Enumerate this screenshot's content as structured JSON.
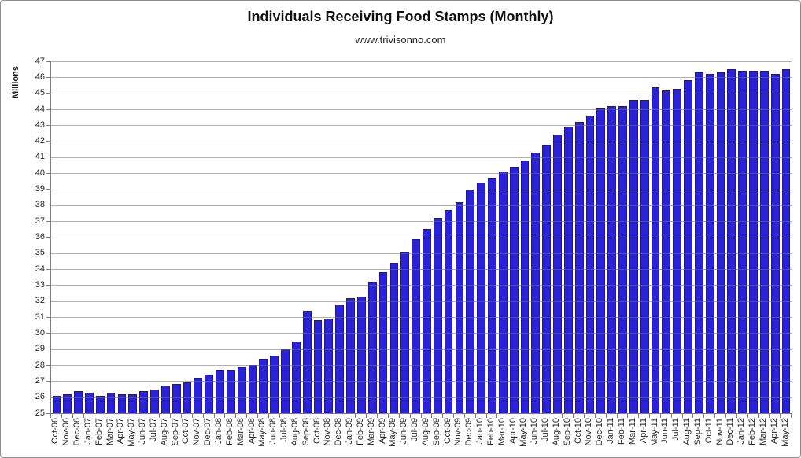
{
  "title": "Individuals Receiving Food Stamps (Monthly)",
  "subtitle": "www.trivisonno.com",
  "colors": {
    "bar_fill": "#2b22d5",
    "bar_border": "#1a149e",
    "gridline": "#ababab",
    "axis": "#7d7d7d",
    "text": "#262626",
    "title_text": "#111111",
    "background": "#ffffff"
  },
  "chart_data": {
    "type": "bar",
    "title": "Individuals Receiving Food Stamps (Monthly)",
    "subtitle": "www.trivisonno.com",
    "xlabel": "",
    "ylabel": "Millions",
    "ylim": [
      25,
      47
    ],
    "ytick_step": 1,
    "grid": true,
    "legend": false,
    "categories": [
      "Oct-06",
      "Nov-06",
      "Dec-06",
      "Jan-07",
      "Feb-07",
      "Mar-07",
      "Apr-07",
      "May-07",
      "Jun-07",
      "Jul-07",
      "Aug-07",
      "Sep-07",
      "Oct-07",
      "Nov-07",
      "Dec-07",
      "Jan-08",
      "Feb-08",
      "Mar-08",
      "Apr-08",
      "May-08",
      "Jun-08",
      "Jul-08",
      "Aug-08",
      "Sep-08",
      "Oct-08",
      "Nov-08",
      "Dec-08",
      "Jan-09",
      "Feb-09",
      "Mar-09",
      "Apr-09",
      "May-09",
      "Jun-09",
      "Jul-09",
      "Aug-09",
      "Sep-09",
      "Oct-09",
      "Nov-09",
      "Dec-09",
      "Jan-10",
      "Feb-10",
      "Mar-10",
      "Apr-10",
      "May-10",
      "Jun-10",
      "Jul-10",
      "Aug-10",
      "Sep-10",
      "Oct-10",
      "Nov-10",
      "Dec-10",
      "Jan-11",
      "Feb-11",
      "Mar-11",
      "Apr-11",
      "May-11",
      "Jun-11",
      "Jul-11",
      "Aug-11",
      "Sep-11",
      "Oct-11",
      "Nov-11",
      "Dec-11",
      "Jan-12",
      "Feb-12",
      "Mar-12",
      "Apr-12",
      "May-12"
    ],
    "values": [
      26.1,
      26.2,
      26.4,
      26.3,
      26.1,
      26.3,
      26.2,
      26.2,
      26.4,
      26.5,
      26.7,
      26.8,
      26.9,
      27.2,
      27.4,
      27.7,
      27.7,
      27.9,
      28.0,
      28.4,
      28.6,
      29.0,
      29.5,
      31.4,
      30.8,
      30.9,
      31.8,
      32.2,
      32.3,
      33.2,
      33.8,
      34.4,
      35.1,
      35.9,
      36.5,
      37.2,
      37.7,
      38.2,
      39.0,
      39.4,
      39.7,
      40.1,
      40.4,
      40.8,
      41.3,
      41.8,
      42.4,
      42.9,
      43.2,
      43.6,
      44.1,
      44.2,
      44.2,
      44.6,
      44.6,
      45.4,
      45.2,
      45.3,
      45.8,
      46.3,
      46.2,
      46.3,
      46.5,
      46.4,
      46.4,
      46.4,
      46.2,
      46.5
    ]
  }
}
